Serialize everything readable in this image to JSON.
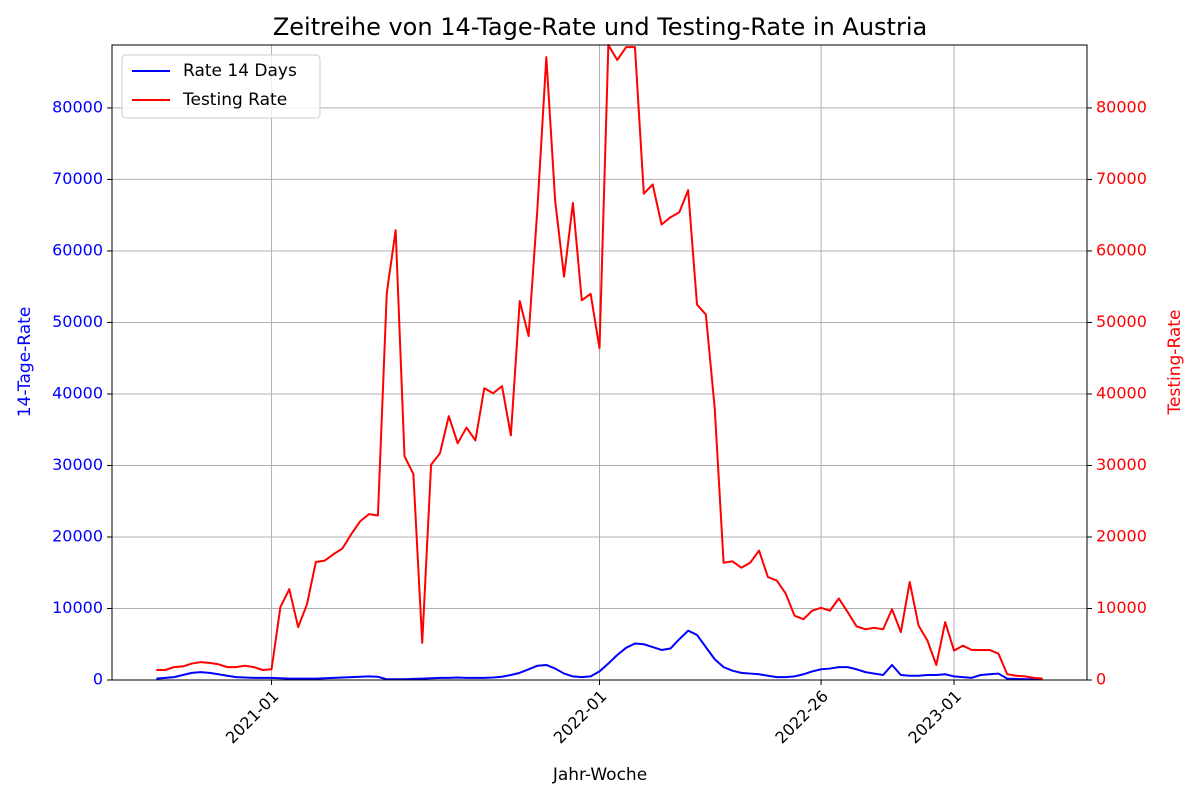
{
  "chart_data": {
    "type": "line",
    "title": "Zeitreihe von 14-Tage-Rate und Testing-Rate in Austria",
    "xlabel": "Jahr-Woche",
    "ylabel": "14-Tage-Rate",
    "y2label": "Testing-Rate",
    "categories": [
      null,
      null,
      null,
      null,
      null,
      null,
      null,
      null,
      null,
      null,
      null,
      null,
      null,
      "2021-01",
      null,
      null,
      null,
      null,
      null,
      null,
      null,
      null,
      null,
      null,
      null,
      null,
      null,
      null,
      null,
      null,
      null,
      null,
      null,
      null,
      null,
      null,
      null,
      null,
      null,
      null,
      null,
      null,
      null,
      null,
      null,
      null,
      null,
      null,
      null,
      null,
      "2022-01",
      null,
      null,
      null,
      null,
      null,
      null,
      null,
      null,
      null,
      null,
      null,
      null,
      null,
      null,
      null,
      null,
      null,
      null,
      null,
      null,
      null,
      null,
      null,
      null,
      "2022-26",
      null,
      null,
      null,
      null,
      null,
      null,
      null,
      null,
      null,
      null,
      null,
      null,
      null,
      null,
      "2023-01",
      null,
      null,
      null,
      null,
      null,
      null,
      null,
      null,
      null,
      null
    ],
    "xlim": [
      -5,
      105
    ],
    "series": [
      {
        "name": "Rate 14 Days",
        "color": "#0000ff",
        "axis": "y",
        "values": [
          200,
          300,
          400,
          700,
          1000,
          1100,
          1000,
          800,
          600,
          400,
          350,
          300,
          300,
          300,
          250,
          200,
          200,
          200,
          200,
          250,
          300,
          350,
          400,
          450,
          500,
          450,
          100,
          100,
          100,
          150,
          200,
          250,
          300,
          300,
          350,
          300,
          300,
          300,
          350,
          450,
          700,
          1000,
          1500,
          2000,
          2100,
          1600,
          900,
          500,
          400,
          500,
          1200,
          2300,
          3500,
          4500,
          5100,
          5000,
          4600,
          4200,
          4400,
          5700,
          6900,
          6300,
          4600,
          2900,
          1800,
          1300,
          1000,
          900,
          800,
          600,
          400,
          400,
          500,
          800,
          1200,
          1500,
          1600,
          1800,
          1800,
          1500,
          1100,
          900,
          700,
          2100,
          700,
          600,
          600,
          700,
          700,
          800,
          500,
          400,
          300,
          700,
          800,
          900,
          200,
          150,
          100,
          100,
          100
        ]
      },
      {
        "name": "Testing Rate",
        "color": "#ff0000",
        "axis": "y2",
        "values": [
          1400,
          1400,
          1800,
          1900,
          2300,
          2500,
          2400,
          2200,
          1800,
          1800,
          2000,
          1800,
          1400,
          1500,
          10200,
          12700,
          7400,
          10600,
          16500,
          16700,
          17600,
          18400,
          20400,
          22200,
          23200,
          23000,
          54100,
          62900,
          31300,
          28800,
          5200,
          30100,
          31700,
          36900,
          33100,
          35300,
          33500,
          40800,
          40100,
          41100,
          34200,
          53000,
          48100,
          66000,
          87100,
          67000,
          56400,
          66700,
          53100,
          54000,
          46400,
          88800,
          86700,
          88500,
          88500,
          68000,
          69300,
          63700,
          64700,
          65400,
          68500,
          52500,
          51100,
          38000,
          16400,
          16600,
          15700,
          16400,
          18100,
          14400,
          13900,
          12100,
          9000,
          8500,
          9700,
          10100,
          9700,
          11400,
          9500,
          7500,
          7100,
          7300,
          7100,
          9900,
          6700,
          13700,
          7600,
          5500,
          2100,
          8100,
          4100,
          4800,
          4200,
          4200,
          4200,
          3700,
          800,
          600,
          500,
          300,
          200
        ]
      }
    ],
    "ylim": [
      0,
      88800
    ],
    "yticks": [
      0,
      10000,
      20000,
      30000,
      40000,
      50000,
      60000,
      70000,
      80000
    ],
    "y2lim": [
      0,
      88800
    ],
    "y2ticks": [
      0,
      10000,
      20000,
      30000,
      40000,
      50000,
      60000,
      70000,
      80000
    ],
    "grid": true,
    "legend": "upper-left"
  }
}
